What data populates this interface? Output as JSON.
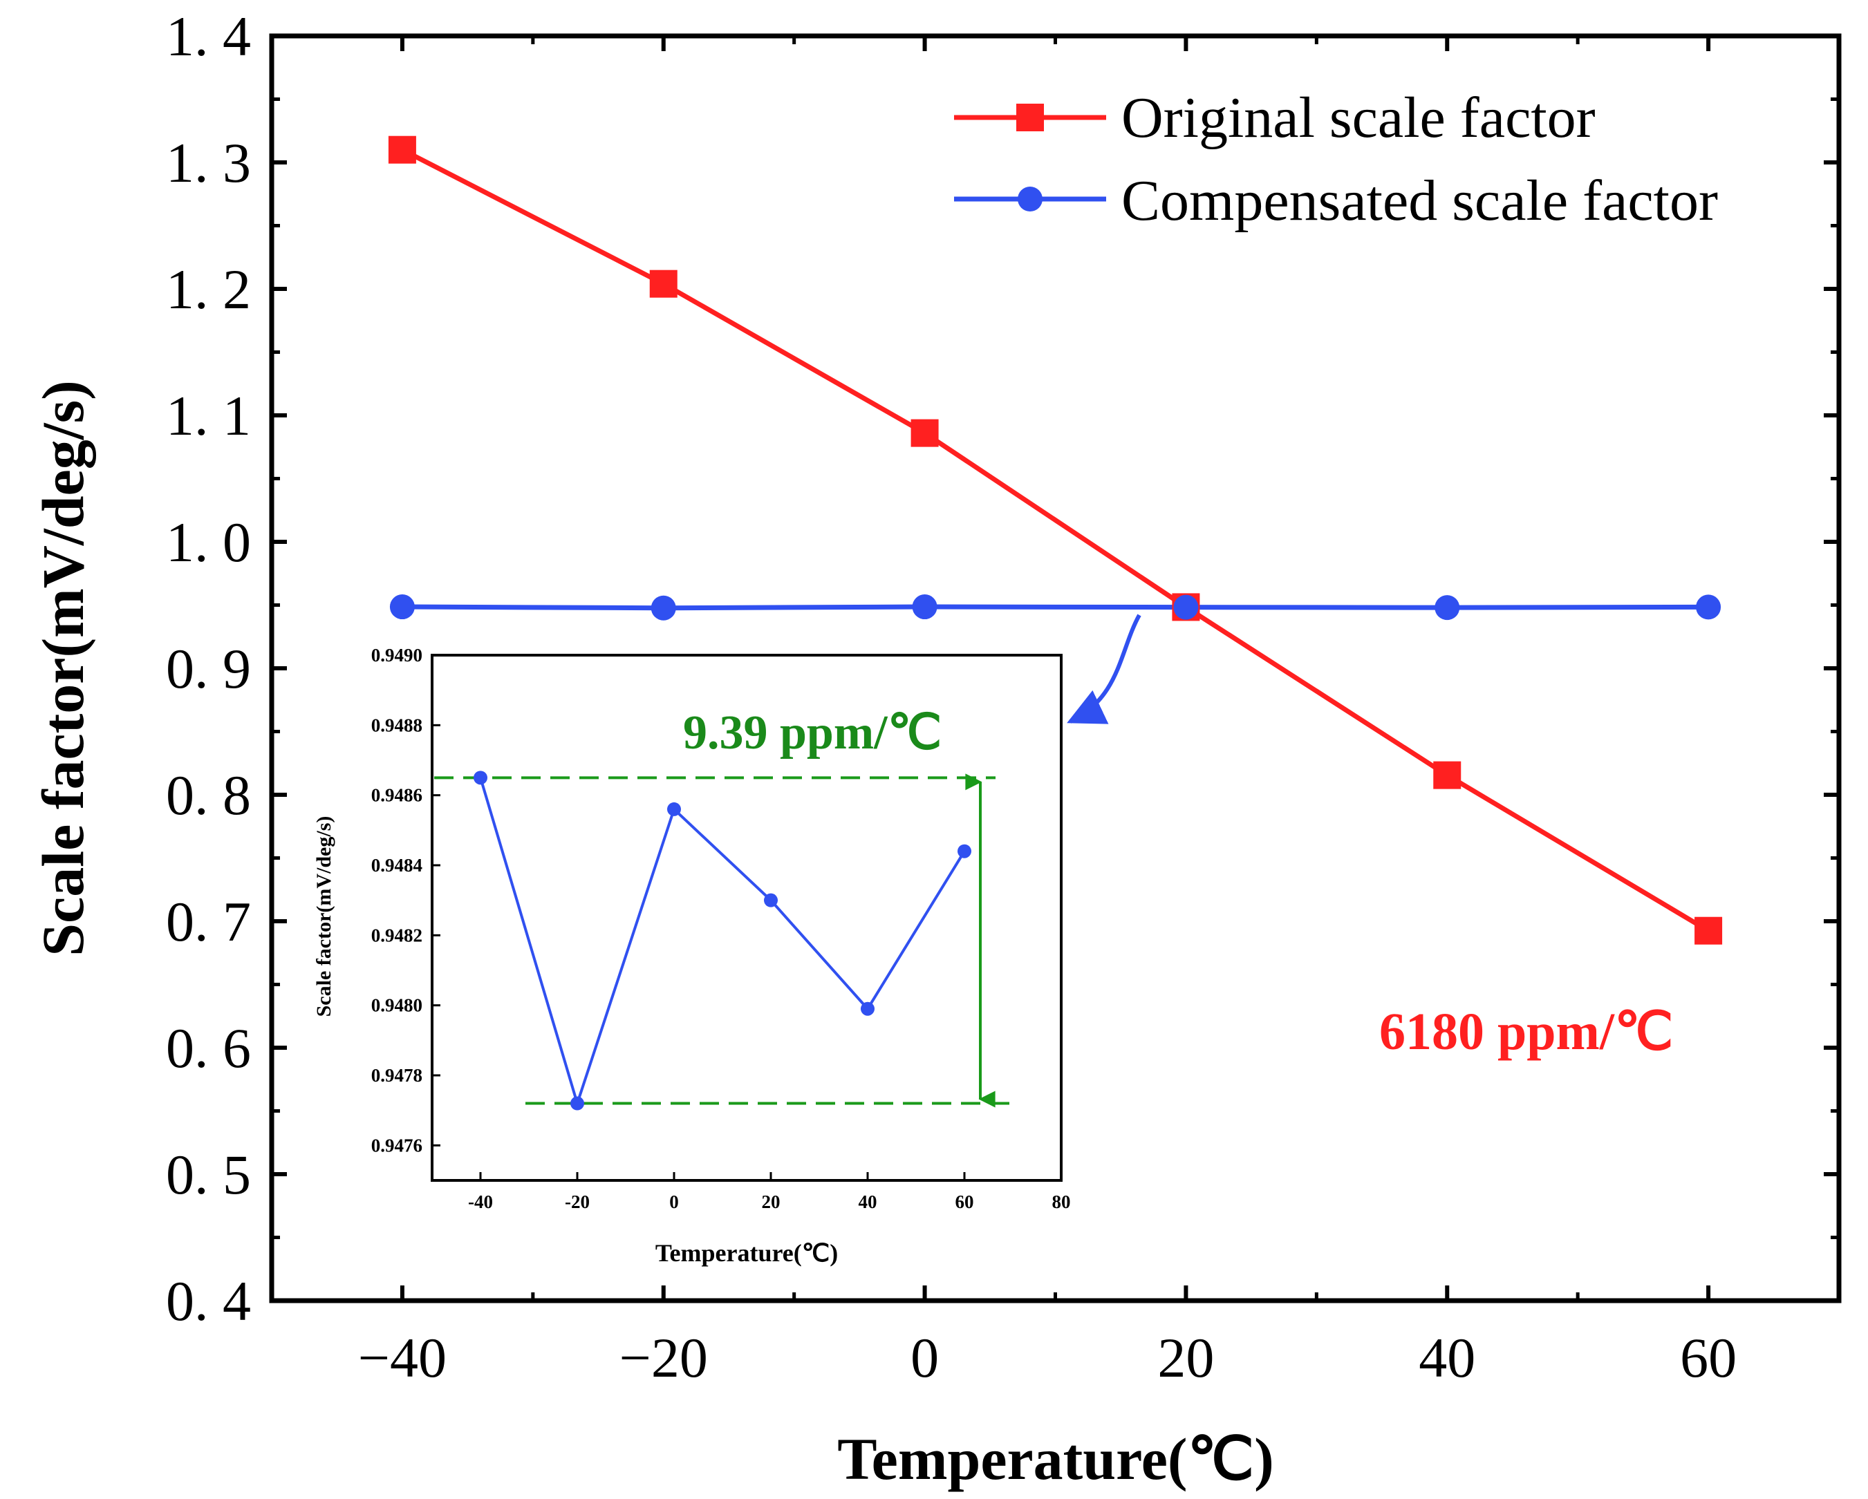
{
  "chart_data": [
    {
      "type": "line",
      "xlabel": "Temperature(℃)",
      "ylabel": "Scale factor(mV/deg/s)",
      "xlim": [
        -50,
        70
      ],
      "ylim": [
        0.4,
        1.4
      ],
      "xticks": [
        -40,
        -20,
        0,
        20,
        40,
        60
      ],
      "xtick_labels": [
        "−40",
        "−20",
        "0",
        "20",
        "40",
        "60"
      ],
      "yticks": [
        0.4,
        0.5,
        0.6,
        0.7,
        0.8,
        0.9,
        1.0,
        1.1,
        1.2,
        1.3,
        1.4
      ],
      "ytick_labels": [
        "0. 4",
        "0. 5",
        "0. 6",
        "0. 7",
        "0. 8",
        "0. 9",
        "1. 0",
        "1. 1",
        "1. 2",
        "1. 3",
        "1. 4"
      ],
      "legend_position": "top-right",
      "series": [
        {
          "name": "Original scale factor",
          "marker": "square",
          "color": "#ff2020",
          "x": [
            -40,
            -20,
            0,
            20,
            40,
            60
          ],
          "values": [
            1.31,
            1.204,
            1.086,
            0.9484,
            0.8155,
            0.6925
          ]
        },
        {
          "name": "Compensated scale factor",
          "marker": "circle",
          "color": "#3050f0",
          "x": [
            -40,
            -20,
            0,
            20,
            40,
            60
          ],
          "values": [
            0.9486,
            0.9477,
            0.9486,
            0.9483,
            0.948,
            0.9484
          ]
        }
      ],
      "annotations": [
        {
          "text": "6180 ppm/℃",
          "color": "#ff2020"
        }
      ]
    },
    {
      "type": "line",
      "role": "inset",
      "xlabel": "Temperature(℃)",
      "ylabel": "Scale factor(mV/deg/s)",
      "xlim": [
        -50,
        80
      ],
      "ylim": [
        0.9475,
        0.949
      ],
      "xticks": [
        -40,
        -20,
        0,
        20,
        40,
        60,
        80
      ],
      "xtick_labels": [
        "-40",
        "-20",
        "0",
        "20",
        "40",
        "60",
        "80"
      ],
      "yticks": [
        0.9476,
        0.9478,
        0.948,
        0.9482,
        0.9484,
        0.9486,
        0.9488,
        0.949
      ],
      "ytick_labels": [
        "0.9476",
        "0.9478",
        "0.9480",
        "0.9482",
        "0.9484",
        "0.9486",
        "0.9488",
        "0.9490"
      ],
      "series": [
        {
          "name": "Compensated scale factor",
          "color": "#3050f0",
          "x": [
            -40,
            -20,
            0,
            20,
            40,
            60
          ],
          "values": [
            0.94865,
            0.94772,
            0.94856,
            0.9483,
            0.94799,
            0.94844
          ]
        }
      ],
      "range_lines": {
        "max": 0.94865,
        "min": 0.94772,
        "color": "#1a9a1a"
      },
      "annotations": [
        {
          "text": "9.39 ppm/℃",
          "color": "#1a8a1a"
        }
      ]
    }
  ]
}
